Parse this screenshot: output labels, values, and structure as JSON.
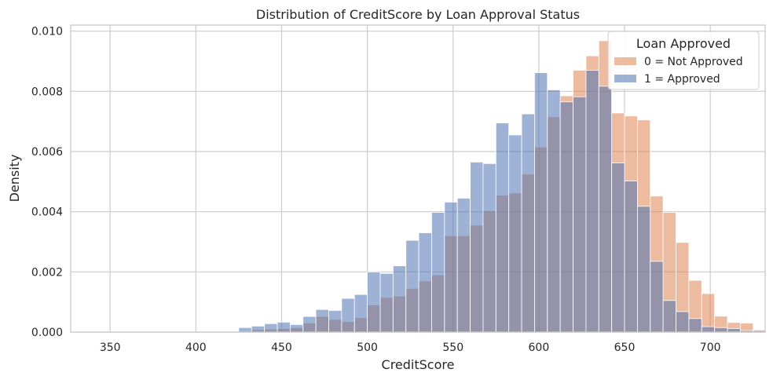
{
  "chart_data": {
    "type": "bar",
    "title": "Distribution of CreditScore by Loan Approval Status",
    "xlabel": "CreditScore",
    "ylabel": "Density",
    "xlim": [
      327,
      732
    ],
    "ylim": [
      0,
      0.0102
    ],
    "bin_start": 335,
    "bin_width": 7.5,
    "x_ticks": [
      350,
      400,
      450,
      500,
      550,
      600,
      650,
      700
    ],
    "y_ticks": [
      0.0,
      0.002,
      0.004,
      0.006,
      0.008,
      0.01
    ],
    "y_tick_labels": [
      "0.000",
      "0.002",
      "0.004",
      "0.006",
      "0.008",
      "0.010"
    ],
    "grid": true,
    "legend": {
      "title": "Loan Approved",
      "position": "top-right",
      "entries": [
        "0 = Not Approved",
        "1 = Approved"
      ]
    },
    "colors": {
      "not_approved": "#dd8452",
      "approved": "#4c72b0",
      "grid": "#cccccc",
      "spine": "#cccccc"
    },
    "series": [
      {
        "name": "0 = Not Approved",
        "values": [
          0,
          0,
          0,
          0,
          0,
          0,
          0,
          0,
          0,
          0,
          0,
          0,
          0,
          8e-05,
          0.0001,
          0.00012,
          0.00015,
          0.0003,
          0.00052,
          0.00042,
          0.00035,
          0.00048,
          0.0009,
          0.00115,
          0.0012,
          0.00145,
          0.0017,
          0.0019,
          0.0032,
          0.0032,
          0.00355,
          0.00403,
          0.00455,
          0.00462,
          0.00525,
          0.00615,
          0.00715,
          0.00785,
          0.0087,
          0.00918,
          0.00968,
          0.00728,
          0.00718,
          0.00705,
          0.00452,
          0.00398,
          0.00298,
          0.00172,
          0.00128,
          0.00053,
          0.00032,
          0.0003,
          8e-05
        ]
      },
      {
        "name": "1 = Approved",
        "values": [
          0,
          0,
          0,
          0,
          0,
          0,
          0,
          0,
          0,
          0,
          0,
          0,
          0.00015,
          0.0002,
          0.00028,
          0.00033,
          0.00025,
          0.00052,
          0.00075,
          0.00072,
          0.00112,
          0.00125,
          0.002,
          0.00195,
          0.0022,
          0.00305,
          0.0033,
          0.00398,
          0.00432,
          0.00445,
          0.00565,
          0.0056,
          0.00695,
          0.00655,
          0.00725,
          0.00862,
          0.00805,
          0.00765,
          0.00782,
          0.0087,
          0.00817,
          0.00562,
          0.00502,
          0.00418,
          0.00235,
          0.00105,
          0.00068,
          0.00045,
          0.00018,
          0.00015,
          0.00012,
          5e-05,
          5e-05
        ]
      }
    ]
  }
}
